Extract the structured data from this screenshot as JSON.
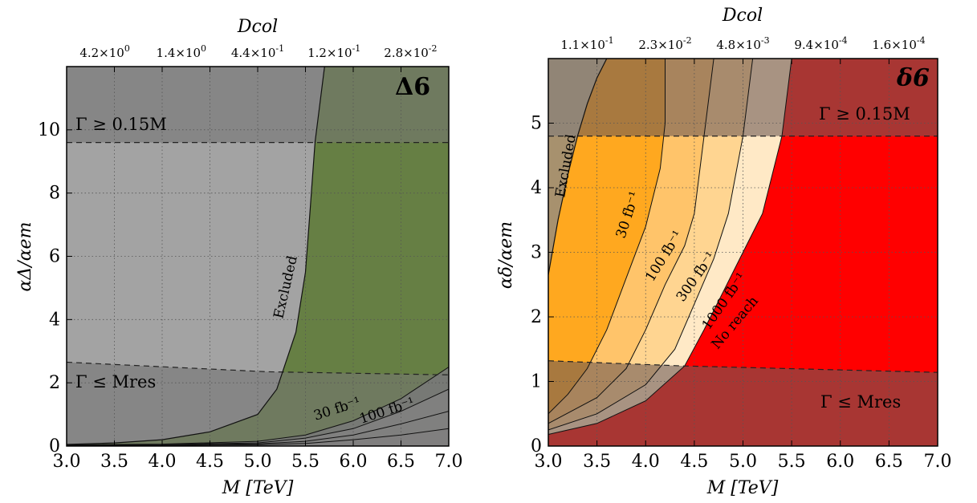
{
  "chart_data": [
    {
      "type": "area",
      "badge": "Δ6",
      "xlabel": "M [TeV]",
      "ylabel": "αΔ/αem",
      "xlim": [
        3.0,
        7.0
      ],
      "ylim": [
        0,
        12
      ],
      "xticks": [
        "3.0",
        "3.5",
        "4.0",
        "4.5",
        "5.0",
        "5.5",
        "6.0",
        "6.5",
        "7.0"
      ],
      "yticks": [
        "0",
        "2",
        "4",
        "6",
        "8",
        "10"
      ],
      "top_axis": {
        "label": "Dcol",
        "ticks": [
          "4.2×10^0",
          "1.4×10^0",
          "4.4×10^-1",
          "1.2×10^-1",
          "2.8×10^-2"
        ]
      },
      "grid": true,
      "annotations": [
        "Γ ≥ 0.15M",
        "Γ ≤ Mres",
        "Excluded",
        "30 fb⁻¹",
        "100 fb⁻¹"
      ],
      "width_upper_line": {
        "x": [
          3.0,
          7.0
        ],
        "y": [
          9.6,
          9.6
        ]
      },
      "width_lower_line": {
        "x": [
          3.0,
          5.1,
          7.0
        ],
        "y": [
          2.65,
          2.35,
          2.25
        ]
      },
      "excluded_boundary": {
        "x": [
          3.0,
          3.5,
          4.0,
          4.5,
          5.0,
          5.2,
          5.4,
          5.5,
          5.55,
          5.6,
          5.7
        ],
        "y": [
          0.05,
          0.1,
          0.2,
          0.45,
          1.0,
          1.8,
          3.6,
          5.5,
          7.5,
          9.6,
          12.0
        ]
      },
      "series": [
        {
          "name": "30 fb⁻¹",
          "x": [
            3.0,
            4.0,
            5.0,
            5.5,
            6.0,
            6.5,
            7.0
          ],
          "y": [
            0.04,
            0.06,
            0.15,
            0.35,
            0.8,
            1.5,
            2.5
          ]
        },
        {
          "name": "100 fb⁻¹",
          "x": [
            3.0,
            4.0,
            5.0,
            5.5,
            6.0,
            6.5,
            7.0
          ],
          "y": [
            0.03,
            0.05,
            0.1,
            0.25,
            0.55,
            1.1,
            1.8
          ]
        },
        {
          "x": [
            3.0,
            4.0,
            5.0,
            5.5,
            6.0,
            6.5,
            7.0
          ],
          "y": [
            0.02,
            0.04,
            0.07,
            0.15,
            0.35,
            0.7,
            1.1
          ]
        },
        {
          "x": [
            3.0,
            4.0,
            5.0,
            5.5,
            6.0,
            6.5,
            7.0
          ],
          "y": [
            0.01,
            0.02,
            0.04,
            0.08,
            0.2,
            0.35,
            0.55
          ]
        }
      ],
      "colors": {
        "excluded": "#888888",
        "allowed": "#d6d6d6",
        "reach": "#667f44",
        "no_reach": "#9b5a5a",
        "width_band": "#8a8a8a"
      }
    },
    {
      "type": "area",
      "badge": "δ6",
      "xlabel": "M [TeV]",
      "ylabel": "αδ/αem",
      "xlim": [
        3.0,
        7.0
      ],
      "ylim": [
        0,
        6
      ],
      "xticks": [
        "3.0",
        "3.5",
        "4.0",
        "4.5",
        "5.0",
        "5.5",
        "6.0",
        "6.5",
        "7.0"
      ],
      "yticks": [
        "0",
        "1",
        "2",
        "3",
        "4",
        "5"
      ],
      "top_axis": {
        "label": "Dcol",
        "ticks": [
          "1.1×10^-1",
          "2.3×10^-2",
          "4.8×10^-3",
          "9.4×10^-4",
          "1.6×10^-4"
        ]
      },
      "grid": true,
      "annotations": [
        "Γ ≥ 0.15M",
        "Γ ≤ Mres",
        "Excluded",
        "30 fb⁻¹",
        "100 fb⁻¹",
        "300 fb⁻¹",
        "1000 fb⁻¹",
        "No reach"
      ],
      "width_upper_line": {
        "x": [
          3.0,
          7.0
        ],
        "y": [
          4.8,
          4.8
        ]
      },
      "width_lower_line": {
        "x": [
          3.0,
          4.4,
          7.0
        ],
        "y": [
          1.32,
          1.24,
          1.14
        ]
      },
      "excluded_boundary": {
        "x": [
          3.0,
          3.1,
          3.2,
          3.3,
          3.4,
          3.5,
          3.6
        ],
        "y": [
          2.65,
          3.5,
          4.2,
          4.8,
          5.3,
          5.7,
          6.0
        ]
      },
      "series": [
        {
          "name": "30 fb⁻¹",
          "x": [
            3.0,
            3.2,
            3.4,
            3.6,
            3.8,
            4.0,
            4.15,
            4.2,
            4.2
          ],
          "y": [
            0.5,
            0.8,
            1.2,
            1.8,
            2.6,
            3.4,
            4.3,
            5.0,
            6.0
          ]
        },
        {
          "name": "100 fb⁻¹",
          "x": [
            3.0,
            3.5,
            3.8,
            4.0,
            4.2,
            4.4,
            4.5,
            4.6,
            4.7
          ],
          "y": [
            0.35,
            0.75,
            1.2,
            1.8,
            2.5,
            3.1,
            3.6,
            4.8,
            6.0
          ]
        },
        {
          "name": "300 fb⁻¹",
          "x": [
            3.0,
            3.5,
            4.0,
            4.3,
            4.5,
            4.7,
            4.85,
            5.0,
            5.1
          ],
          "y": [
            0.25,
            0.5,
            0.95,
            1.5,
            2.2,
            2.9,
            3.6,
            4.8,
            6.0
          ]
        },
        {
          "name": "1000 fb⁻¹",
          "x": [
            3.0,
            3.5,
            4.0,
            4.4,
            4.6,
            4.8,
            5.0,
            5.2,
            5.4,
            5.5
          ],
          "y": [
            0.18,
            0.35,
            0.7,
            1.24,
            1.8,
            2.4,
            3.0,
            3.6,
            4.8,
            6.0
          ]
        }
      ],
      "colors": {
        "excluded": "#888888",
        "c30": "#ffa81f",
        "c100": "#ffc46a",
        "c300": "#ffd591",
        "c1000": "#ffe9c6",
        "no_reach": "#ff0000",
        "width_band_dark": "#9b5a5a"
      }
    }
  ]
}
